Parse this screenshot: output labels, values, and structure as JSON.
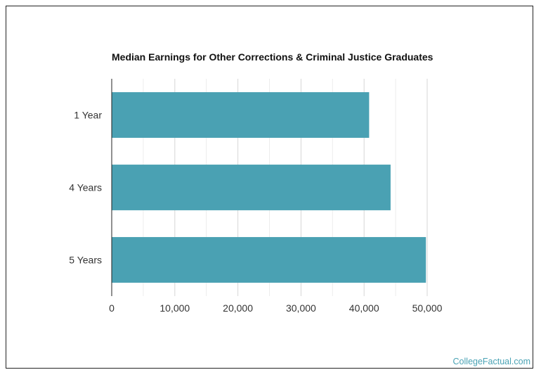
{
  "chart_data": {
    "type": "bar",
    "orientation": "horizontal",
    "title": "Median Earnings for Other Corrections & Criminal Justice Graduates",
    "xlabel": "",
    "ylabel": "",
    "categories": [
      "1 Year",
      "4 Years",
      "5 Years"
    ],
    "values": [
      40800,
      44200,
      49800
    ],
    "xlim": [
      0,
      50000
    ],
    "x_ticks": [
      0,
      10000,
      20000,
      30000,
      40000,
      50000
    ],
    "x_tick_labels": [
      "0",
      "10,000",
      "20,000",
      "30,000",
      "40,000",
      "50,000"
    ],
    "bar_color": "#4aa1b3",
    "grid": true
  },
  "watermark": "CollegeFactual.com"
}
